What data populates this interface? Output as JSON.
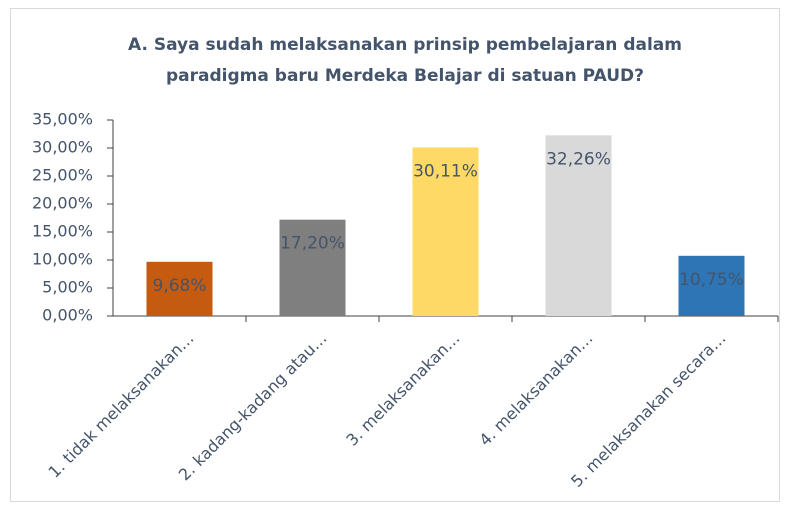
{
  "chart_data": {
    "type": "bar",
    "title": "A. Saya sudah melaksanakan prinsip pembelajaran dalam paradigma baru Merdeka Belajar di satuan PAUD?",
    "categories": [
      "1. tidak melaksanakan…",
      "2. kadang-kadang atau…",
      "3. melaksanakan…",
      "4. melaksanakan…",
      "5. melaksanakan secara…"
    ],
    "values": [
      9.68,
      17.2,
      30.11,
      32.26,
      10.75
    ],
    "value_labels": [
      "9,68%",
      "17,20%",
      "30,11%",
      "32,26%",
      "10,75%"
    ],
    "colors": [
      "#c55a11",
      "#7f7f7f",
      "#ffd966",
      "#d9d9d9",
      "#2e75b6"
    ],
    "ylim": [
      0,
      35
    ],
    "yticks": [
      {
        "value": 0,
        "label": "0,00%"
      },
      {
        "value": 5,
        "label": "5,00%"
      },
      {
        "value": 10,
        "label": "10,00%"
      },
      {
        "value": 15,
        "label": "15,00%"
      },
      {
        "value": 20,
        "label": "20,00%"
      },
      {
        "value": 25,
        "label": "25,00%"
      },
      {
        "value": 30,
        "label": "30,00%"
      },
      {
        "value": 35,
        "label": "35,00%"
      }
    ],
    "grid": false
  }
}
